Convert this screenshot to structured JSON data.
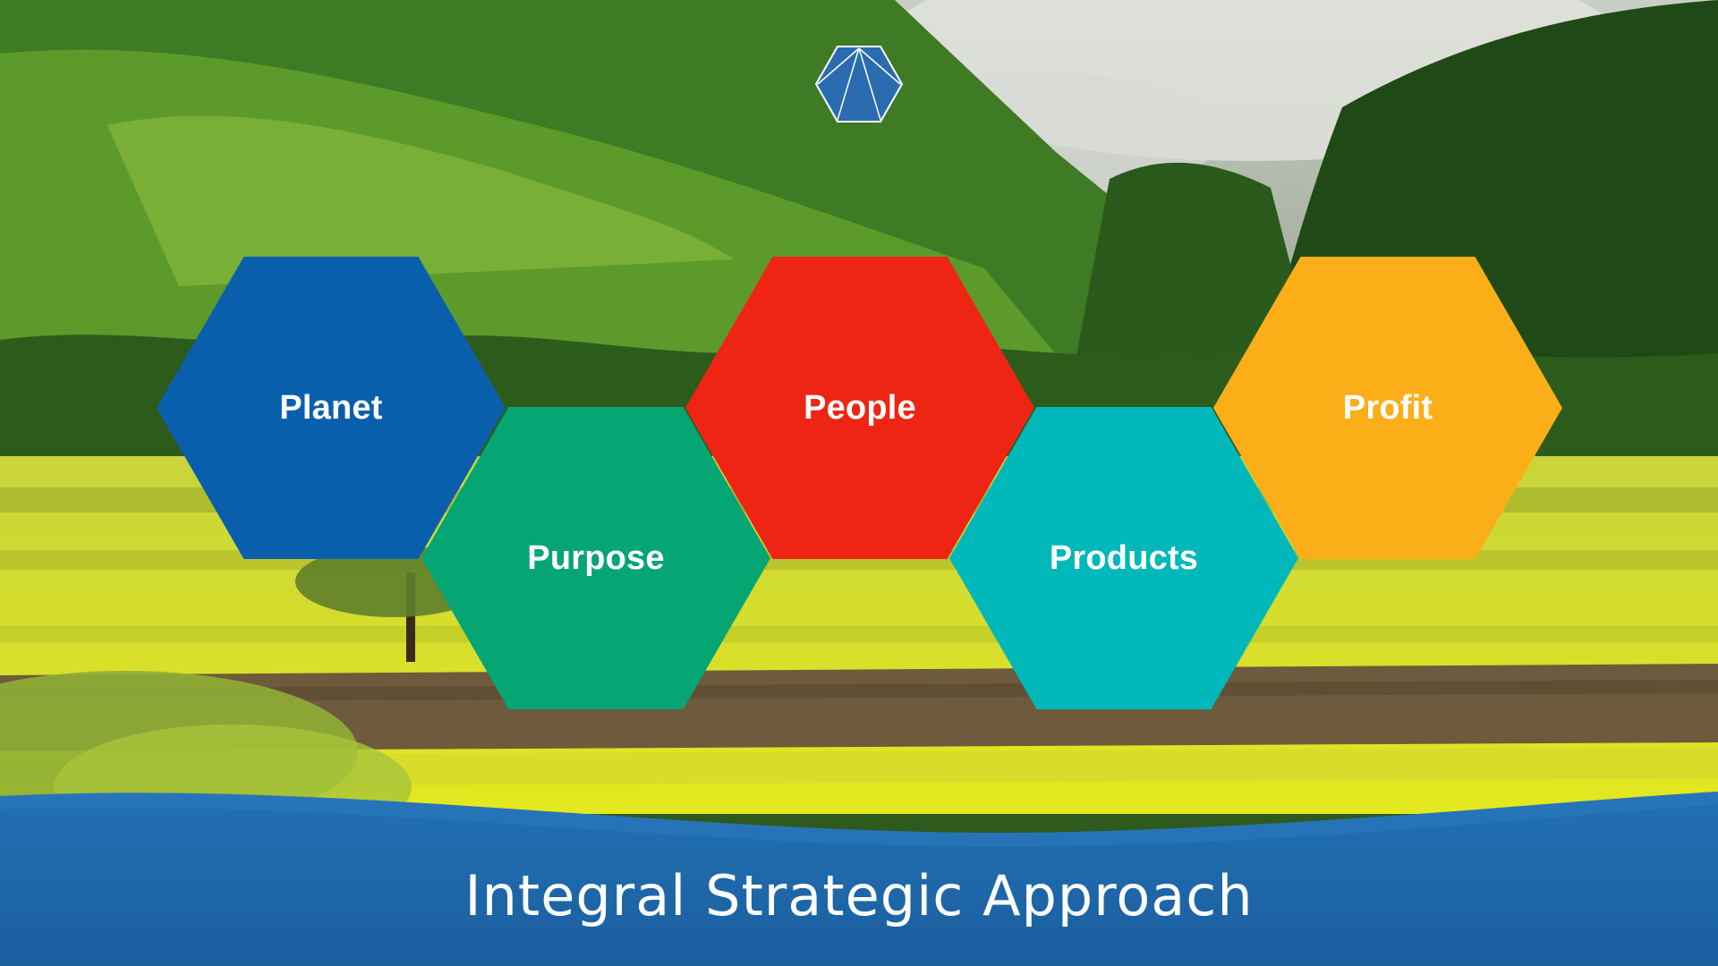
{
  "slide": {
    "title": "Integral Strategic Approach"
  },
  "logo": {
    "icon": "pentagon-logo-icon",
    "color": "#2b6cb0"
  },
  "hexagons": [
    {
      "label": "Planet",
      "color": "#0a5fad"
    },
    {
      "label": "Purpose",
      "color": "#05a574"
    },
    {
      "label": "People",
      "color": "#ee2514"
    },
    {
      "label": "Products",
      "color": "#00b8b9"
    },
    {
      "label": "Profit",
      "color": "#fbae17"
    }
  ],
  "background": {
    "icon": "landscape-photo",
    "banner_color": "#1f66a8"
  }
}
